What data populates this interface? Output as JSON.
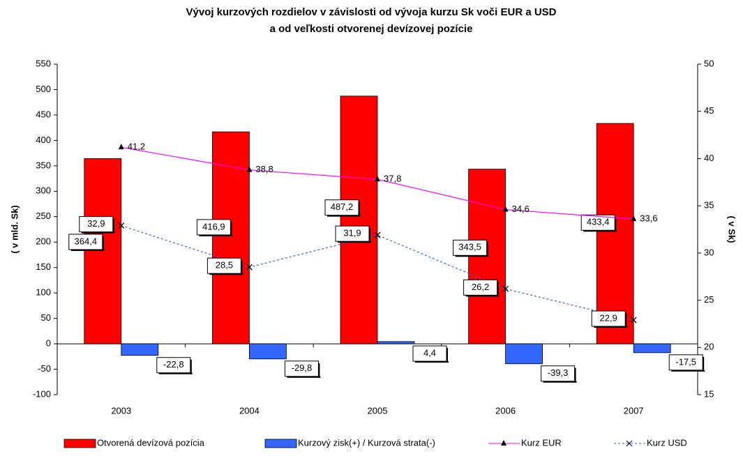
{
  "chart_data": {
    "type": "bar",
    "title": [
      "Vývoj kurzových rozdielov v závislosti od vývoja kurzu Sk voči EUR a USD",
      "a od veľkosti otvorenej devízovej pozície"
    ],
    "ylabel": "( v mld. Sk)",
    "y2label": "( v Sk)",
    "categories": [
      "2003",
      "2004",
      "2005",
      "2006",
      "2007"
    ],
    "ylim": [
      -100,
      550
    ],
    "yticks": [
      -100,
      -50,
      0,
      50,
      100,
      150,
      200,
      250,
      300,
      350,
      400,
      450,
      500,
      550
    ],
    "y2lim": [
      15,
      50
    ],
    "y2ticks": [
      15,
      20,
      25,
      30,
      35,
      40,
      45,
      50
    ],
    "series": [
      {
        "name": "Otvorená devízová pozícia",
        "type": "bar",
        "color": "#ff0000",
        "values": [
          364.4,
          416.9,
          487.2,
          343.5,
          433.4
        ],
        "value_labels": [
          "364,4",
          "416,9",
          "487,2",
          "343,5",
          "433,4"
        ]
      },
      {
        "name": "Kurzový zisk(+) / Kurzová strata(-)",
        "type": "bar",
        "color": "#3366ff",
        "values": [
          -22.8,
          -29.8,
          4.4,
          -39.3,
          -17.5
        ],
        "value_labels": [
          "-22,8",
          "-29,8",
          "4,4",
          "-39,3",
          "-17,5"
        ]
      },
      {
        "name": "Kurz EUR",
        "type": "line",
        "axis": "y2",
        "color": "#ff00ff",
        "marker": "triangle",
        "values": [
          41.2,
          38.8,
          37.8,
          34.6,
          33.6
        ],
        "value_labels": [
          "41,2",
          "38,8",
          "37,8",
          "34,6",
          "33,6"
        ]
      },
      {
        "name": "Kurz USD",
        "type": "line",
        "axis": "y2",
        "color": "#3366cc",
        "marker": "x",
        "dashed": true,
        "values": [
          32.9,
          28.5,
          31.9,
          26.2,
          22.9
        ],
        "value_labels": [
          "32,9",
          "28,5",
          "31,9",
          "26,2",
          "22,9"
        ]
      }
    ]
  }
}
